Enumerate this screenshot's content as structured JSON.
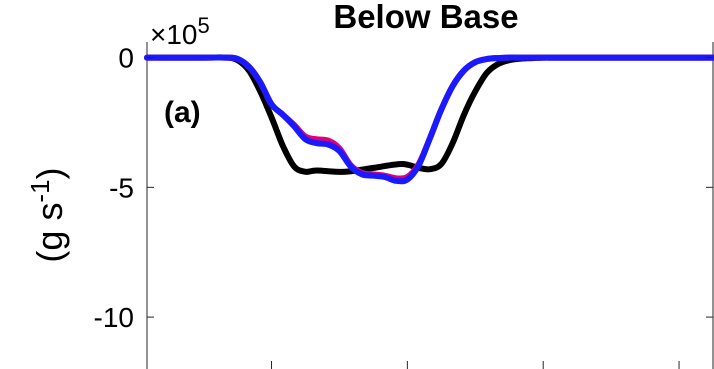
{
  "chart_data": {
    "type": "line",
    "title": "Below Base",
    "panel_label": "(a)",
    "ylabel_base": "(g s",
    "ylabel_exp": "-1",
    "ylabel_close": ")",
    "y_multiplier_base": "×10",
    "y_multiplier_exp": "5",
    "yticks": [
      0,
      -5,
      -10
    ],
    "ytick_labels": [
      "0",
      "-5",
      "-10"
    ],
    "ylim": [
      -12,
      0.6
    ],
    "xlim": [
      0,
      100
    ],
    "xticks": [
      22,
      46,
      70,
      94
    ],
    "grid": false,
    "series": [
      {
        "color": "#000000",
        "x": [
          0,
          10,
          14,
          16,
          18,
          20,
          22,
          24,
          26,
          28,
          30,
          35,
          40,
          45,
          48,
          50,
          52,
          54,
          56,
          58,
          60,
          62,
          64,
          66,
          68,
          70,
          72,
          75,
          78,
          85,
          90,
          100
        ],
        "y": [
          0,
          0,
          0,
          -0.1,
          -0.5,
          -1.3,
          -2.3,
          -3.4,
          -4.2,
          -4.4,
          -4.35,
          -4.4,
          -4.25,
          -4.1,
          -4.25,
          -4.3,
          -4.1,
          -3.3,
          -2.2,
          -1.3,
          -0.6,
          -0.25,
          -0.1,
          -0.04,
          -0.02,
          0,
          0,
          0,
          0,
          0,
          0,
          0
        ]
      },
      {
        "color": "#e0007a",
        "x": [
          0,
          10,
          14,
          16,
          18,
          20,
          22,
          24,
          26,
          28,
          30,
          32,
          34,
          36,
          38,
          40,
          42,
          44,
          46,
          48,
          50,
          52,
          54,
          56,
          58,
          60,
          62,
          64,
          66,
          68,
          70,
          72,
          75,
          78,
          85,
          90,
          100
        ],
        "y": [
          0,
          0,
          0,
          -0.05,
          -0.35,
          -0.95,
          -1.8,
          -2.2,
          -2.6,
          -3.05,
          -3.15,
          -3.2,
          -3.5,
          -4.15,
          -4.45,
          -4.5,
          -4.55,
          -4.65,
          -4.6,
          -4.1,
          -3.1,
          -2.0,
          -1.1,
          -0.5,
          -0.18,
          -0.06,
          -0.02,
          0,
          0,
          0,
          0,
          0,
          0,
          0,
          0,
          0,
          0
        ]
      },
      {
        "color": "#1a1aff",
        "x": [
          0,
          10,
          14,
          16,
          18,
          20,
          22,
          24,
          26,
          28,
          30,
          32,
          34,
          36,
          38,
          40,
          42,
          44,
          46,
          48,
          50,
          52,
          54,
          56,
          58,
          60,
          62,
          64,
          66,
          68,
          70,
          72,
          75,
          78,
          85,
          90,
          100
        ],
        "y": [
          0,
          0,
          0,
          -0.05,
          -0.35,
          -0.95,
          -1.8,
          -2.2,
          -2.65,
          -3.15,
          -3.3,
          -3.35,
          -3.6,
          -4.2,
          -4.5,
          -4.55,
          -4.6,
          -4.75,
          -4.7,
          -4.15,
          -3.1,
          -2.0,
          -1.1,
          -0.5,
          -0.18,
          -0.06,
          -0.02,
          0,
          0,
          0,
          0,
          0,
          0,
          0,
          0,
          0,
          0
        ]
      }
    ]
  }
}
